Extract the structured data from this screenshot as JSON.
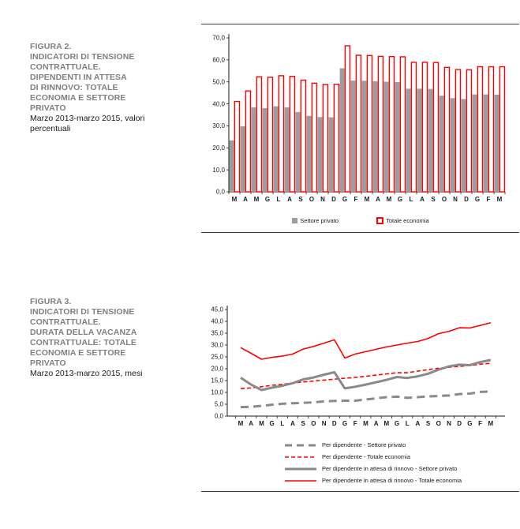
{
  "figures": [
    {
      "id": "figura-2",
      "heading": "FIGURA 2.\nINDICATORI DI TENSIONE\nCONTRATTUALE.\nDIPENDENTI IN ATTESA\nDI RINNOVO: TOTALE\nECONOMIA E SETTORE\nPRIVATO",
      "subtitle": "Marzo 2013-marzo 2015, valori percentuali"
    },
    {
      "id": "figura-3",
      "heading": "FIGURA 3.\nINDICATORI DI TENSIONE\nCONTRATTUALE.\nDURATA DELLA VACANZA\nCONTRATTUALE: TOTALE\nECONOMIA E SETTORE\nPRIVATO",
      "subtitle": "Marzo 2013-marzo 2015, mesi"
    }
  ],
  "colors": {
    "accent_red": "#fe0000",
    "bar_gray": "#9d9d9d",
    "line_gray": "#8a8a8a",
    "heading_gray": "#7f7f7f",
    "axis_black": "#1a1a1a",
    "rule": "#3f3f3f"
  },
  "chart_data": [
    {
      "type": "bar",
      "title": "FIGURA 2. INDICATORI DI TENSIONE CONTRATTUALE. DIPENDENTI IN ATTESA DI RINNOVO: TOTALE ECONOMIA E SETTORE PRIVATO",
      "subtitle": "Marzo 2013-marzo 2015, valori percentuali",
      "categories": [
        "M",
        "A",
        "M",
        "G",
        "L",
        "A",
        "S",
        "O",
        "N",
        "D",
        "G",
        "F",
        "M",
        "A",
        "M",
        "G",
        "L",
        "A",
        "S",
        "O",
        "N",
        "D",
        "G",
        "F",
        "M"
      ],
      "series": [
        {
          "name": "Settore privato",
          "style": "filled",
          "color": "#9d9d9d",
          "values": [
            23.4,
            29.8,
            38.4,
            38.1,
            38.9,
            38.4,
            36.3,
            34.5,
            34.0,
            33.9,
            56.2,
            50.6,
            50.5,
            50.3,
            50.1,
            49.9,
            46.9,
            46.9,
            46.8,
            43.7,
            42.6,
            42.2,
            44.3,
            44.3,
            44.2
          ]
        },
        {
          "name": "Totale economia",
          "style": "outlined",
          "color": "#fe0000",
          "values": [
            41.1,
            45.9,
            52.3,
            52.1,
            52.8,
            52.5,
            50.8,
            49.4,
            48.8,
            48.9,
            66.4,
            62.1,
            62.0,
            61.6,
            61.5,
            61.4,
            58.9,
            58.9,
            58.8,
            56.6,
            55.6,
            55.5,
            56.9,
            56.9,
            56.9
          ]
        }
      ],
      "xlabel": "",
      "ylabel": "",
      "ylim": [
        0,
        70
      ],
      "ytick_step": 10,
      "grid": false,
      "legend_position": "bottom"
    },
    {
      "type": "line",
      "title": "FIGURA 3. INDICATORI DI TENSIONE CONTRATTUALE. DURATA DELLA VACANZA CONTRATTUALE: TOTALE ECONOMIA E SETTORE PRIVATO",
      "subtitle": "Marzo 2013-marzo 2015, mesi",
      "categories": [
        "M",
        "A",
        "M",
        "G",
        "L",
        "A",
        "S",
        "O",
        "N",
        "D",
        "G",
        "F",
        "M",
        "A",
        "M",
        "G",
        "L",
        "A",
        "S",
        "O",
        "N",
        "D",
        "G",
        "F",
        "M"
      ],
      "series": [
        {
          "name": "Per dipendente - Settore privato",
          "color": "#8a8a8a",
          "dash": "long",
          "width": 3,
          "values": [
            3.8,
            3.9,
            4.3,
            4.8,
            5.2,
            5.4,
            5.6,
            5.8,
            6.2,
            6.4,
            6.5,
            6.5,
            7.0,
            7.5,
            8.0,
            8.2,
            7.7,
            8.0,
            8.3,
            8.5,
            8.7,
            9.3,
            9.5,
            10.2,
            10.4
          ]
        },
        {
          "name": "Per dipendente - Totale economia",
          "color": "#fe0000",
          "dash": "short",
          "width": 1.6,
          "values": [
            11.6,
            11.9,
            12.4,
            13.0,
            13.4,
            14.0,
            14.4,
            14.8,
            15.2,
            15.6,
            16.0,
            16.3,
            16.8,
            17.3,
            17.8,
            18.3,
            18.3,
            19.0,
            19.6,
            20.2,
            20.6,
            21.0,
            21.3,
            21.9,
            22.3
          ]
        },
        {
          "name": "Per dipendente in attesa di rinnovo - Settore privato",
          "color": "#8a8a8a",
          "dash": "solid",
          "width": 3,
          "values": [
            16.2,
            13.3,
            11.0,
            12.0,
            12.8,
            13.9,
            15.5,
            16.3,
            17.5,
            18.5,
            11.7,
            12.4,
            13.3,
            14.3,
            15.3,
            16.5,
            16.1,
            16.8,
            17.9,
            19.6,
            21.0,
            21.7,
            21.5,
            22.8,
            23.7
          ]
        },
        {
          "name": "Per dipendente in attesa di rinnovo - Totale economia",
          "color": "#fe0000",
          "dash": "solid",
          "width": 1.6,
          "values": [
            28.9,
            26.5,
            24.0,
            24.8,
            25.3,
            26.2,
            28.3,
            29.4,
            30.8,
            32.2,
            24.5,
            26.2,
            27.2,
            28.2,
            29.2,
            30.0,
            30.8,
            31.5,
            32.8,
            34.8,
            35.8,
            37.3,
            37.2,
            38.3,
            39.4
          ]
        }
      ],
      "xlabel": "",
      "ylabel": "",
      "ylim": [
        0,
        45
      ],
      "ytick_step": 5,
      "grid": false,
      "legend_position": "bottom"
    }
  ]
}
